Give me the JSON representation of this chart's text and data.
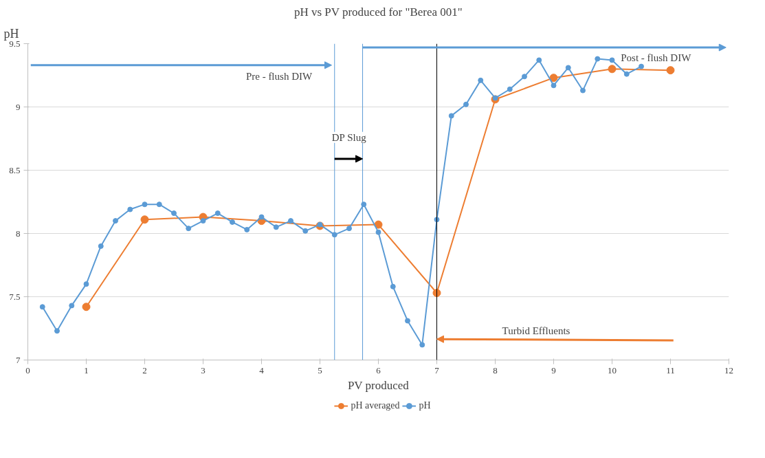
{
  "chart_data": {
    "type": "line",
    "title": "pH vs PV produced for \"Berea 001\"",
    "xlabel": "PV produced",
    "ylabel": "pH",
    "xlim": [
      0,
      12
    ],
    "xticks": [
      0,
      1,
      2,
      3,
      4,
      5,
      6,
      7,
      8,
      9,
      10,
      11,
      12
    ],
    "ylim": [
      7,
      9.5
    ],
    "yticks": [
      7,
      7.5,
      8,
      8.5,
      9,
      9.5
    ],
    "grid": "y",
    "legend": "bottom",
    "marker": "circle",
    "line_style": "solid",
    "series": [
      {
        "name": "pH averaged",
        "color": "#ed7d31",
        "x": [
          1,
          2,
          3,
          4,
          5,
          6,
          7,
          8,
          9,
          10,
          11
        ],
        "values": [
          7.42,
          8.11,
          8.13,
          8.1,
          8.06,
          8.07,
          7.53,
          9.06,
          9.23,
          9.3,
          9.29
        ]
      },
      {
        "name": "pH",
        "color": "#5b9bd5",
        "x": [
          0.25,
          0.5,
          0.75,
          1,
          1.25,
          1.5,
          1.75,
          2,
          2.25,
          2.5,
          2.75,
          3,
          3.25,
          3.5,
          3.75,
          4,
          4.25,
          4.5,
          4.75,
          5,
          5.25,
          5.5,
          5.75,
          6,
          6.25,
          6.5,
          6.75,
          7,
          7.25,
          7.5,
          7.75,
          8,
          8.25,
          8.5,
          8.75,
          9,
          9.25,
          9.5,
          9.75,
          10,
          10.25,
          10.5
        ],
        "values": [
          7.42,
          7.23,
          7.43,
          7.6,
          7.9,
          8.1,
          8.19,
          8.23,
          8.23,
          8.16,
          8.04,
          8.1,
          8.16,
          8.09,
          8.03,
          8.13,
          8.05,
          8.1,
          8.02,
          8.07,
          7.99,
          8.04,
          8.23,
          8.01,
          7.58,
          7.31,
          7.12,
          8.11,
          8.93,
          9.02,
          9.21,
          9.07,
          9.14,
          9.24,
          9.37,
          9.17,
          9.31,
          9.13,
          9.38,
          9.37,
          9.26,
          9.32
        ]
      }
    ],
    "ref_lines": [
      {
        "axis": "x",
        "value": 5.25,
        "color": "#5b9bd5"
      },
      {
        "axis": "x",
        "value": 5.73,
        "color": "#5b9bd5"
      },
      {
        "axis": "x",
        "value": 7,
        "color": "#000000"
      }
    ],
    "annotations": [
      "Pre - flush DIW",
      "Post - flush DIW",
      "DP Slug",
      "Turbid Effluents"
    ]
  }
}
